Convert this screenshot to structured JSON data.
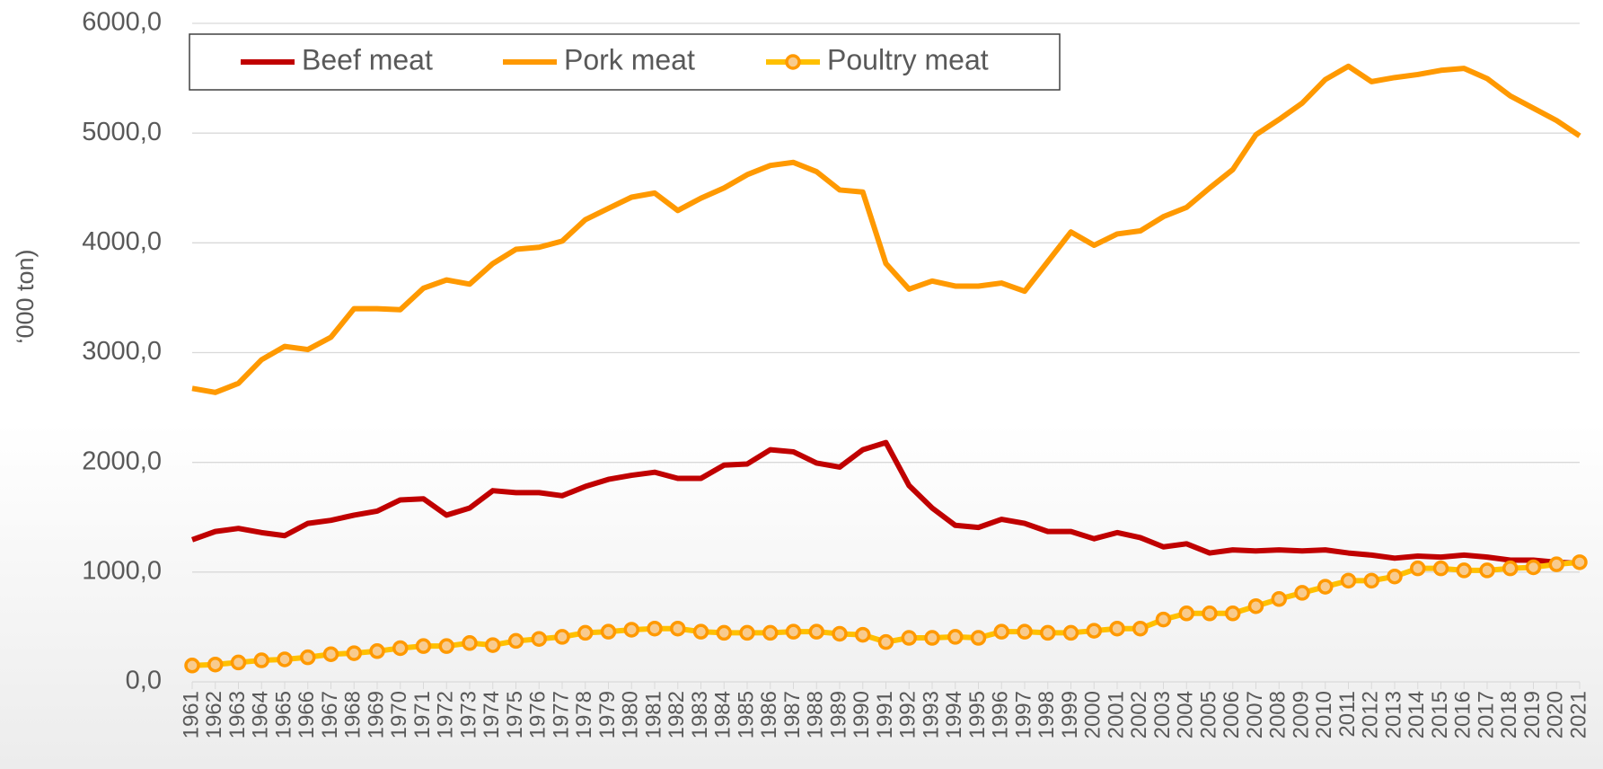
{
  "chart_data": {
    "type": "line",
    "y_label": "‘000 ton)",
    "categories": [
      "1961",
      "1962",
      "1963",
      "1964",
      "1965",
      "1966",
      "1967",
      "1968",
      "1969",
      "1970",
      "1971",
      "1972",
      "1973",
      "1974",
      "1975",
      "1976",
      "1977",
      "1978",
      "1979",
      "1980",
      "1981",
      "1982",
      "1983",
      "1984",
      "1985",
      "1986",
      "1987",
      "1988",
      "1989",
      "1990",
      "1991",
      "1992",
      "1993",
      "1994",
      "1995",
      "1996",
      "1997",
      "1998",
      "1999",
      "2000",
      "2001",
      "2002",
      "2003",
      "2004",
      "2005",
      "2006",
      "2007",
      "2008",
      "2009",
      "2010",
      "2011",
      "2012",
      "2013",
      "2014",
      "2015",
      "2016",
      "2017",
      "2018",
      "2019",
      "2020",
      "2021"
    ],
    "series": [
      {
        "name": "Beef meat",
        "color": "#c00000",
        "marker": false,
        "values": [
          1295,
          1370,
          1398,
          1360,
          1332,
          1444,
          1472,
          1519,
          1556,
          1658,
          1668,
          1519,
          1584,
          1742,
          1724,
          1724,
          1696,
          1780,
          1845,
          1882,
          1910,
          1854,
          1854,
          1975,
          1985,
          2115,
          2096,
          1994,
          1957,
          2115,
          2180,
          1789,
          1584,
          1426,
          1407,
          1481,
          1444,
          1370,
          1370,
          1304,
          1360,
          1314,
          1230,
          1258,
          1174,
          1202,
          1193,
          1202,
          1193,
          1202,
          1174,
          1155,
          1127,
          1146,
          1137,
          1155,
          1137,
          1109,
          1109,
          1090,
          1081
        ]
      },
      {
        "name": "Pork meat",
        "color": "#ff9900",
        "marker": false,
        "values": [
          2674,
          2637,
          2720,
          2935,
          3056,
          3028,
          3140,
          3400,
          3400,
          3391,
          3587,
          3662,
          3624,
          3811,
          3941,
          3960,
          4016,
          4211,
          4314,
          4416,
          4454,
          4295,
          4407,
          4500,
          4621,
          4705,
          4733,
          4649,
          4482,
          4463,
          3811,
          3578,
          3652,
          3606,
          3606,
          3634,
          3559,
          3829,
          4099,
          3978,
          4081,
          4109,
          4239,
          4323,
          4500,
          4668,
          4985,
          5124,
          5273,
          5488,
          5609,
          5469,
          5506,
          5534,
          5572,
          5590,
          5497,
          5339,
          5227,
          5115,
          4975
        ]
      },
      {
        "name": "Poultry meat",
        "color": "#ffc000",
        "marker": true,
        "marker_color": "#ff9900",
        "marker_fill": "#f8cb8e",
        "values": [
          149,
          158,
          177,
          196,
          205,
          224,
          252,
          261,
          280,
          307,
          326,
          326,
          354,
          335,
          373,
          391,
          410,
          447,
          457,
          475,
          485,
          485,
          457,
          447,
          447,
          447,
          457,
          457,
          438,
          429,
          363,
          401,
          401,
          410,
          401,
          457,
          457,
          447,
          447,
          466,
          485,
          485,
          568,
          624,
          624,
          624,
          690,
          755,
          811,
          867,
          922,
          922,
          960,
          1034,
          1034,
          1016,
          1016,
          1034,
          1044,
          1071,
          1090
        ]
      }
    ],
    "ylim": [
      0,
      6000
    ],
    "yticks": [
      {
        "value": 0,
        "label": "0,0"
      },
      {
        "value": 1000,
        "label": "1000,0"
      },
      {
        "value": 2000,
        "label": "2000,0"
      },
      {
        "value": 3000,
        "label": "3000,0"
      },
      {
        "value": 4000,
        "label": "4000,0"
      },
      {
        "value": 5000,
        "label": "5000,0"
      },
      {
        "value": 6000,
        "label": "6000,0"
      }
    ],
    "grid": true,
    "legend": "top-left"
  }
}
